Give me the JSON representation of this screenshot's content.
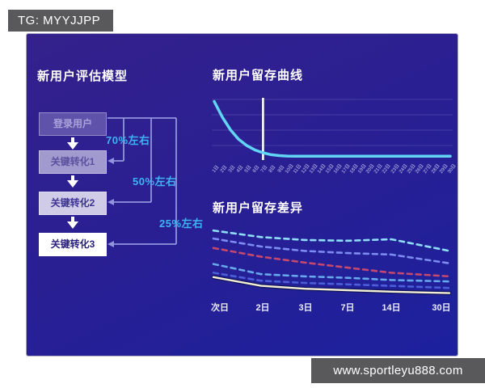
{
  "badge": {
    "text": "TG: MYYJJPP"
  },
  "watermark": {
    "text": "www.sportleyu888.com"
  },
  "theme": {
    "panel_top": "#34218c",
    "panel_bottom": "#1c209e",
    "accent_cyan": "#3db4f2",
    "connector": "#9095dd",
    "badge_gray": "#59595b"
  },
  "funnel": {
    "title": "新用户评估模型",
    "steps": [
      {
        "label": "登录用户"
      },
      {
        "label": "关键转化1"
      },
      {
        "label": "关键转化2"
      },
      {
        "label": "关键转化3"
      }
    ],
    "rates": [
      {
        "label": "70%左右"
      },
      {
        "label": "50%左右"
      },
      {
        "label": "25%左右"
      }
    ]
  },
  "chart_data": [
    {
      "type": "line",
      "title": "新用户留存曲线",
      "x_labels": [
        "1日",
        "2日",
        "3日",
        "4日",
        "5日",
        "6日",
        "7日",
        "8日",
        "9日",
        "10日",
        "11日",
        "12日",
        "13日",
        "14日",
        "15日",
        "16日",
        "17日",
        "18日",
        "19日",
        "20日",
        "21日",
        "22日",
        "23日",
        "24日",
        "25日",
        "26日",
        "27日",
        "28日",
        "29日",
        "30日"
      ],
      "ylim": [
        0,
        100
      ],
      "grid": true,
      "marker_day": 7,
      "series": [
        {
          "name": "retention",
          "color": "#62d4f4",
          "style": "solid",
          "values": [
            93,
            68,
            48,
            33,
            23,
            16,
            11.5,
            8.5,
            7,
            6.3,
            6,
            6,
            6,
            6,
            6,
            6,
            6,
            6,
            6,
            6,
            6,
            6,
            6,
            6,
            6,
            6,
            6,
            6,
            6.2,
            6.2
          ]
        }
      ]
    },
    {
      "type": "line",
      "title": "新用户留存差异",
      "categories": [
        "次日",
        "2日",
        "3日",
        "7日",
        "14日",
        "30日"
      ],
      "ylim": [
        0,
        100
      ],
      "grid": false,
      "series": [
        {
          "name": "line1",
          "color": "#8edef8",
          "style": "dashed",
          "values": [
            92,
            83,
            79,
            78,
            80,
            64
          ]
        },
        {
          "name": "line2",
          "color": "#7d8cf0",
          "style": "dashed",
          "values": [
            81,
            70,
            64,
            61,
            59,
            47
          ]
        },
        {
          "name": "line3",
          "color": "#c5486e",
          "style": "dashed",
          "values": [
            68,
            56,
            48,
            41,
            34,
            29
          ]
        },
        {
          "name": "line4",
          "color": "#66a8ea",
          "style": "dashed",
          "values": [
            46,
            32,
            29,
            27,
            24,
            22
          ]
        },
        {
          "name": "line5",
          "color": "#4a5fd8",
          "style": "dashed",
          "values": [
            34,
            23,
            20,
            18,
            16,
            13
          ]
        },
        {
          "name": "line6",
          "color": "#f4eed6",
          "style": "solid",
          "underlay": "#10155c",
          "values": [
            28,
            16,
            12,
            10,
            8,
            6
          ]
        }
      ]
    }
  ]
}
